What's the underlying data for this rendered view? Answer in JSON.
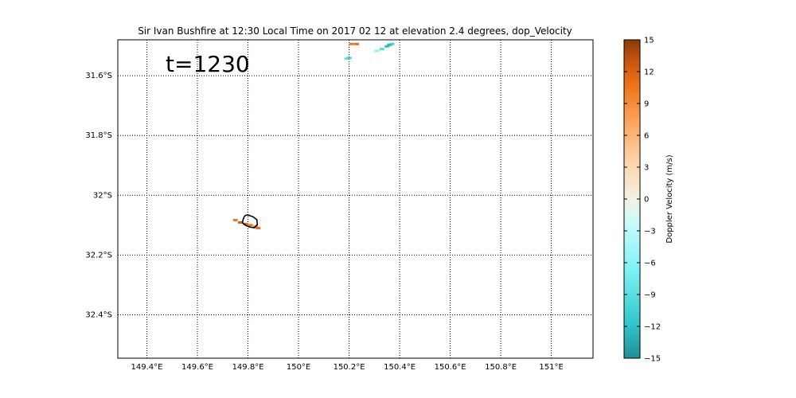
{
  "chart_data": {
    "type": "heatmap",
    "title": "Sir Ivan Bushfire at 12:30 Local Time on 2017 02 12 at elevation 2.4 degrees, dop_Velocity",
    "annotation": "t=1230",
    "xlim": [
      149.285,
      151.165
    ],
    "ylim": [
      -32.545,
      -31.48
    ],
    "grid": true,
    "x_ticks": [
      {
        "value": 149.4,
        "label": "149.4°E"
      },
      {
        "value": 149.6,
        "label": "149.6°E"
      },
      {
        "value": 149.8,
        "label": "149.8°E"
      },
      {
        "value": 150.0,
        "label": "150°E"
      },
      {
        "value": 150.2,
        "label": "150.2°E"
      },
      {
        "value": 150.4,
        "label": "150.4°E"
      },
      {
        "value": 150.6,
        "label": "150.6°E"
      },
      {
        "value": 150.8,
        "label": "150.8°E"
      },
      {
        "value": 151.0,
        "label": "151°E"
      }
    ],
    "y_ticks": [
      {
        "value": -31.6,
        "label": "31.6°S"
      },
      {
        "value": -31.8,
        "label": "31.8°S"
      },
      {
        "value": -32.0,
        "label": "32°S"
      },
      {
        "value": -32.2,
        "label": "32.2°S"
      },
      {
        "value": -32.4,
        "label": "32.4°S"
      }
    ],
    "colorbar": {
      "label": "Doppler Velocity (m/s)",
      "min": -15,
      "max": 15,
      "ticks": [
        15,
        12,
        9,
        6,
        3,
        0,
        -3,
        -6,
        -9,
        -12,
        -15
      ],
      "tick_labels": [
        "15",
        "12",
        "9",
        "6",
        "3",
        "0",
        "−3",
        "−6",
        "−9",
        "−12",
        "−15"
      ],
      "colors": [
        "#1f8f94",
        "#33c6cc",
        "#7ff2f4",
        "#c5fbfb",
        "#f4f0e6",
        "#fcd3a8",
        "#fba259",
        "#ec7218",
        "#c2530e",
        "#8a3a08"
      ]
    },
    "radar_echoes": [
      {
        "lon": 150.21,
        "lat": -31.494,
        "velocity": 8
      },
      {
        "lon": 150.23,
        "lat": -31.494,
        "velocity": 9
      },
      {
        "lon": 150.19,
        "lat": -31.543,
        "velocity": -9
      },
      {
        "lon": 150.2,
        "lat": -31.541,
        "velocity": -11
      },
      {
        "lon": 150.31,
        "lat": -31.517,
        "velocity": -8
      },
      {
        "lon": 150.33,
        "lat": -31.511,
        "velocity": -10
      },
      {
        "lon": 150.35,
        "lat": -31.502,
        "velocity": -12
      },
      {
        "lon": 150.36,
        "lat": -31.497,
        "velocity": -13
      },
      {
        "lon": 150.37,
        "lat": -31.494,
        "velocity": -11
      },
      {
        "lon": 149.75,
        "lat": -32.083,
        "velocity": 8
      },
      {
        "lon": 149.77,
        "lat": -32.091,
        "velocity": 10
      },
      {
        "lon": 149.79,
        "lat": -32.096,
        "velocity": 9
      },
      {
        "lon": 149.81,
        "lat": -32.1,
        "velocity": 8
      },
      {
        "lon": 149.83,
        "lat": -32.105,
        "velocity": 7
      },
      {
        "lon": 149.84,
        "lat": -32.11,
        "velocity": 9
      }
    ],
    "fire_perimeter": [
      [
        149.79,
        -32.067
      ],
      [
        149.8,
        -32.066
      ],
      [
        149.82,
        -32.072
      ],
      [
        149.835,
        -32.082
      ],
      [
        149.837,
        -32.098
      ],
      [
        149.825,
        -32.109
      ],
      [
        149.805,
        -32.106
      ],
      [
        149.79,
        -32.1
      ],
      [
        149.778,
        -32.092
      ],
      [
        149.781,
        -32.08
      ],
      [
        149.785,
        -32.072
      ],
      [
        149.79,
        -32.067
      ]
    ]
  }
}
